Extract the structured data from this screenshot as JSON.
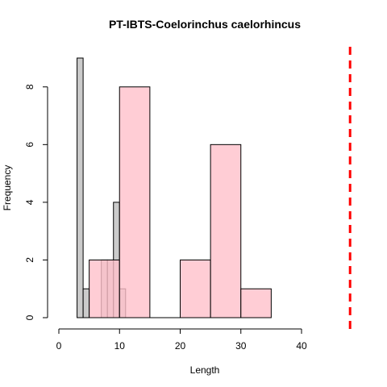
{
  "chart_data": {
    "type": "bar",
    "title": "PT-IBTS-Coelorinchus caelorhincus",
    "xlabel": "Length",
    "ylabel": "Frequency",
    "xlim": [
      0,
      40
    ],
    "ylim": [
      0,
      9
    ],
    "x_ticks": [
      0,
      10,
      20,
      30,
      40
    ],
    "y_ticks": [
      0,
      2,
      4,
      6,
      8
    ],
    "reference_line": {
      "x": 48,
      "color": "#ff0000",
      "style": "dashed"
    },
    "series": [
      {
        "fill": "#bebebe",
        "opacity": 0.8,
        "bins": [
          {
            "x0": 3,
            "x1": 4,
            "y": 9
          },
          {
            "x0": 4,
            "x1": 5,
            "y": 1
          },
          {
            "x0": 5,
            "x1": 6,
            "y": 0
          },
          {
            "x0": 6,
            "x1": 7,
            "y": 0
          },
          {
            "x0": 7,
            "x1": 8,
            "y": 2
          },
          {
            "x0": 8,
            "x1": 9,
            "y": 2
          },
          {
            "x0": 9,
            "x1": 10,
            "y": 4
          },
          {
            "x0": 10,
            "x1": 11,
            "y": 1
          }
        ]
      },
      {
        "fill": "#ffc0cb",
        "opacity": 0.8,
        "bins": [
          {
            "x0": 5,
            "x1": 10,
            "y": 2
          },
          {
            "x0": 10,
            "x1": 15,
            "y": 8
          },
          {
            "x0": 15,
            "x1": 20,
            "y": 0
          },
          {
            "x0": 20,
            "x1": 25,
            "y": 2
          },
          {
            "x0": 25,
            "x1": 30,
            "y": 6
          },
          {
            "x0": 30,
            "x1": 35,
            "y": 1
          }
        ]
      }
    ]
  }
}
